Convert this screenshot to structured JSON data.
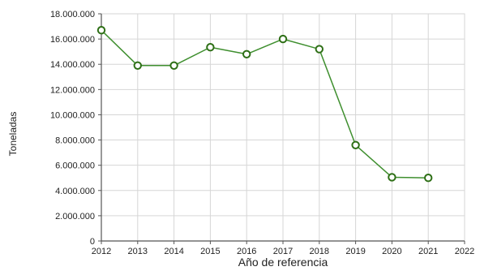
{
  "chart_data": {
    "type": "line",
    "title": "",
    "xlabel": "Año de referencia",
    "ylabel": "Toneladas",
    "x": [
      2012,
      2013,
      2014,
      2015,
      2016,
      2017,
      2018,
      2019,
      2020,
      2021
    ],
    "series": [
      {
        "values": [
          16700000,
          13900000,
          13900000,
          15350000,
          14800000,
          16000000,
          15200000,
          7600000,
          5050000,
          5000000
        ]
      }
    ],
    "xlim": [
      2012,
      2022
    ],
    "ylim": [
      0,
      18000000
    ],
    "x_ticks": [
      2012,
      2013,
      2014,
      2015,
      2016,
      2017,
      2018,
      2019,
      2020,
      2021,
      2022
    ],
    "x_tick_labels": [
      "2012",
      "2013",
      "2014",
      "2015",
      "2016",
      "2017",
      "2018",
      "2019",
      "2020",
      "2021",
      "2022"
    ],
    "y_ticks": [
      0,
      2000000,
      4000000,
      6000000,
      8000000,
      10000000,
      12000000,
      14000000,
      16000000,
      18000000
    ],
    "y_tick_labels": [
      "0",
      "2.000.000",
      "4.000.000",
      "6.000.000",
      "8.000.000",
      "10.000.000",
      "12.000.000",
      "14.000.000",
      "16.000.000",
      "18.000.000"
    ],
    "grid": true,
    "legend": "none",
    "colors": {
      "line": "#3f8f2f",
      "marker_stroke": "#2e6f16",
      "marker_fill": "#ffffff",
      "grid": "#d6d6d6",
      "axis": "#555555"
    }
  }
}
